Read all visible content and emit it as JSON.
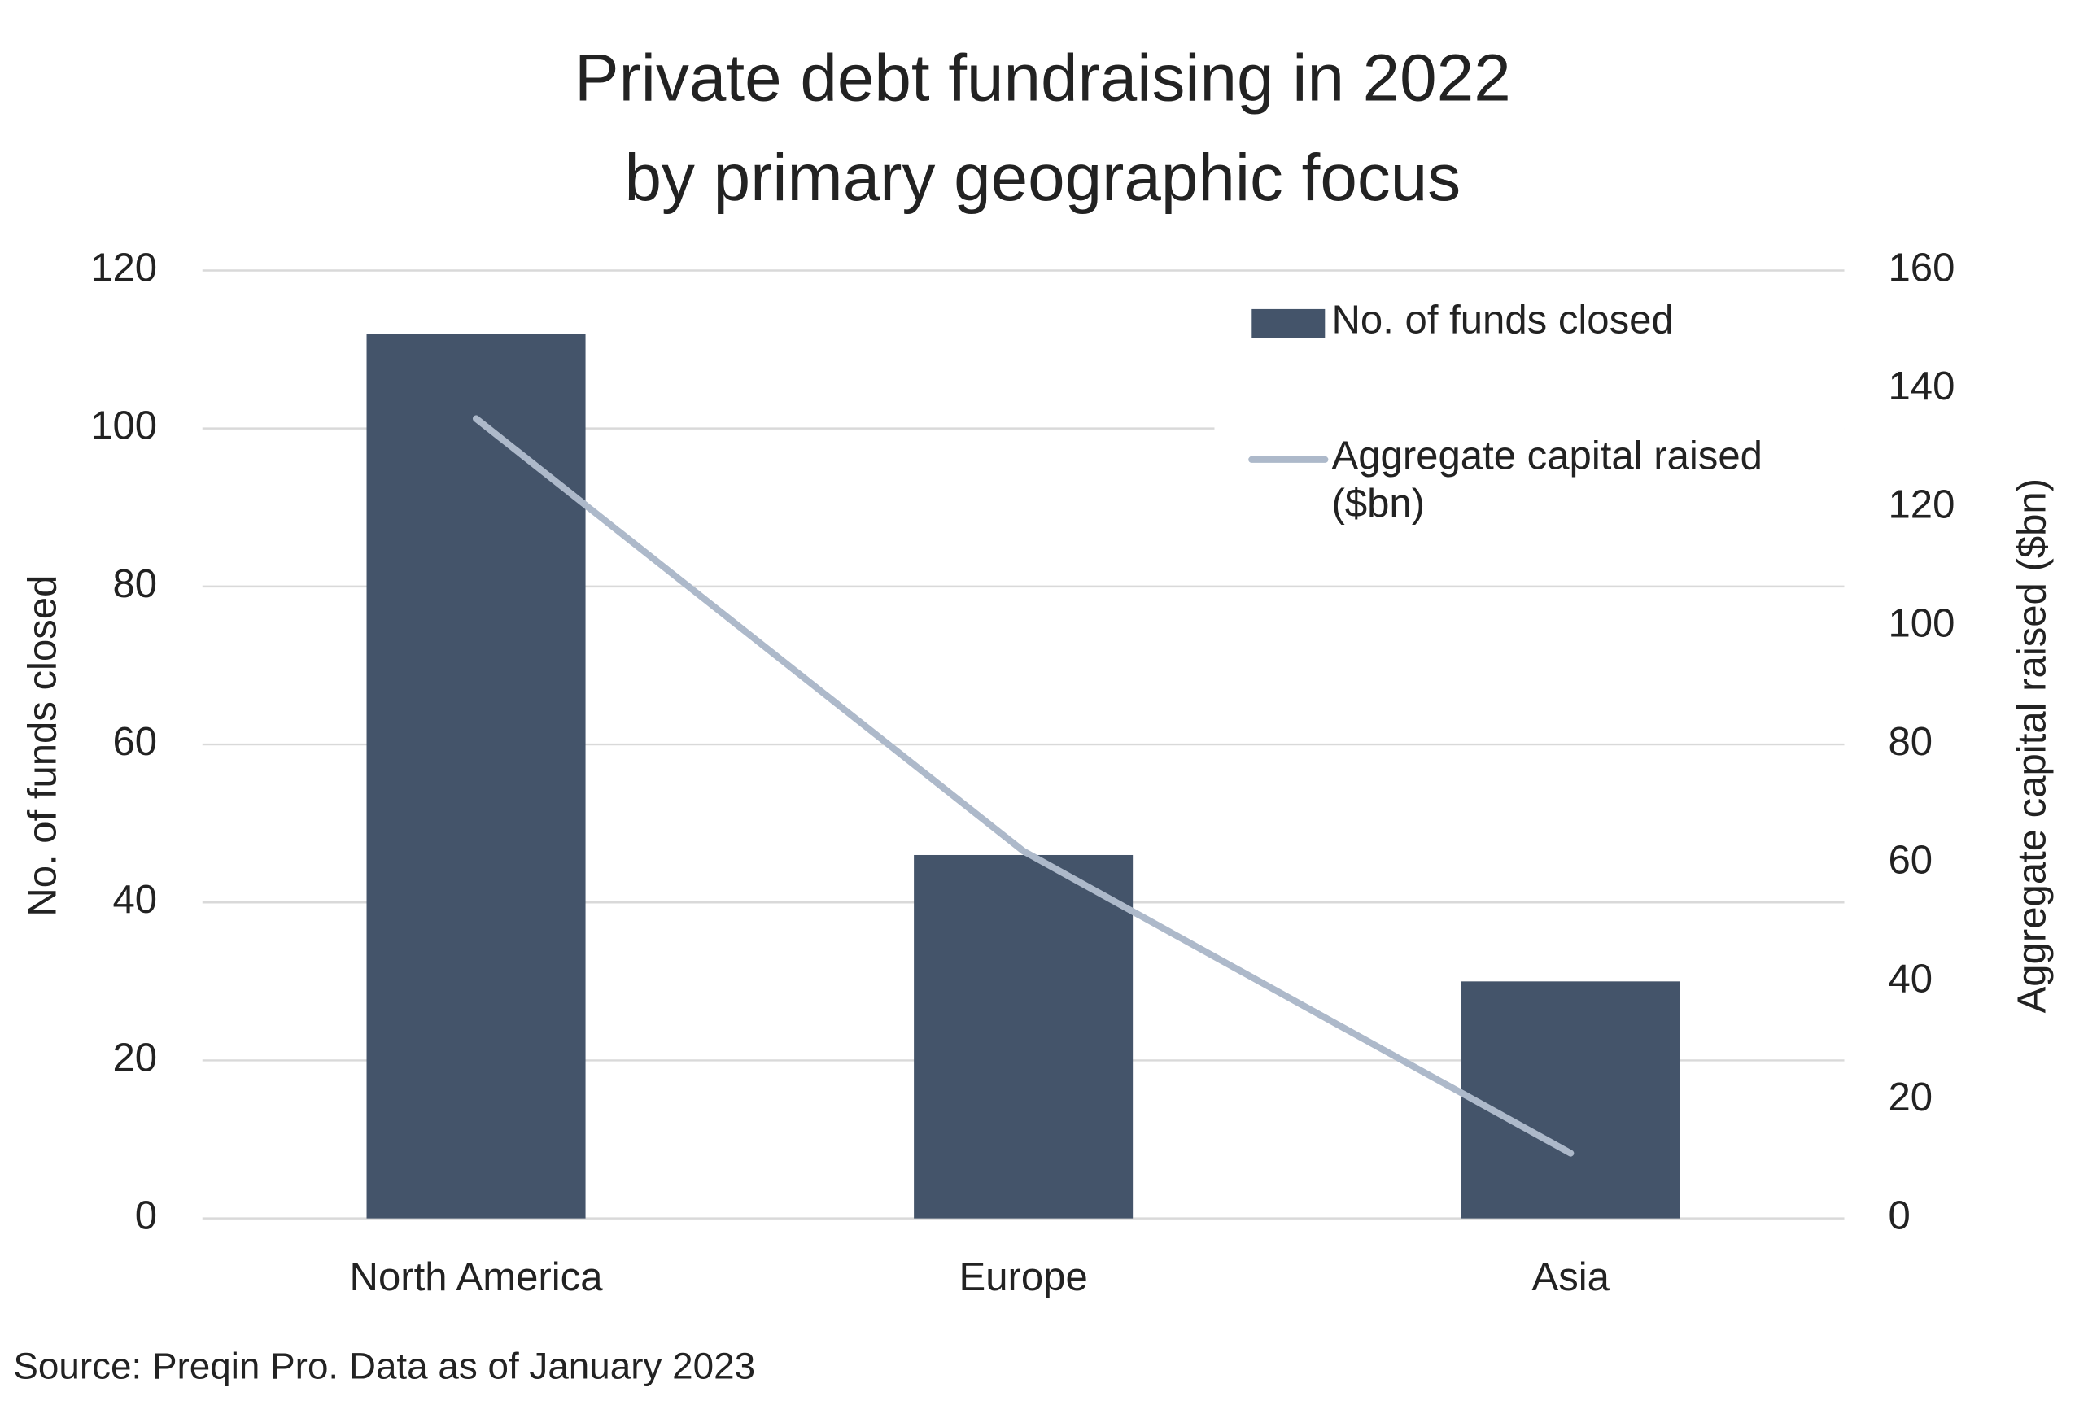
{
  "chart_data": {
    "type": "bar",
    "title": [
      "Private debt fundraising in 2022",
      "by primary geographic focus"
    ],
    "categories": [
      "North America",
      "Europe",
      "Asia"
    ],
    "series": [
      {
        "name": "No. of funds closed",
        "type": "bar",
        "color": "#44546a",
        "values": [
          112,
          46,
          30
        ]
      },
      {
        "name": "Aggregate capital raised ($bn)",
        "type": "line",
        "axis": "y2",
        "color": "#adb9ca",
        "values": [
          135,
          62,
          11
        ]
      }
    ],
    "y_label": "No. of funds closed",
    "y2_label": "Aggregate capital raised ($bn)",
    "ylim": [
      0,
      120
    ],
    "yticks": [
      0,
      20,
      40,
      60,
      80,
      100,
      120
    ],
    "y2lim": [
      0,
      160
    ],
    "y2ticks": [
      0,
      20,
      40,
      60,
      80,
      100,
      120,
      140,
      160
    ],
    "grid": true,
    "legend": "top-right",
    "source": "Source: Preqin Pro. Data as of January 2023"
  }
}
